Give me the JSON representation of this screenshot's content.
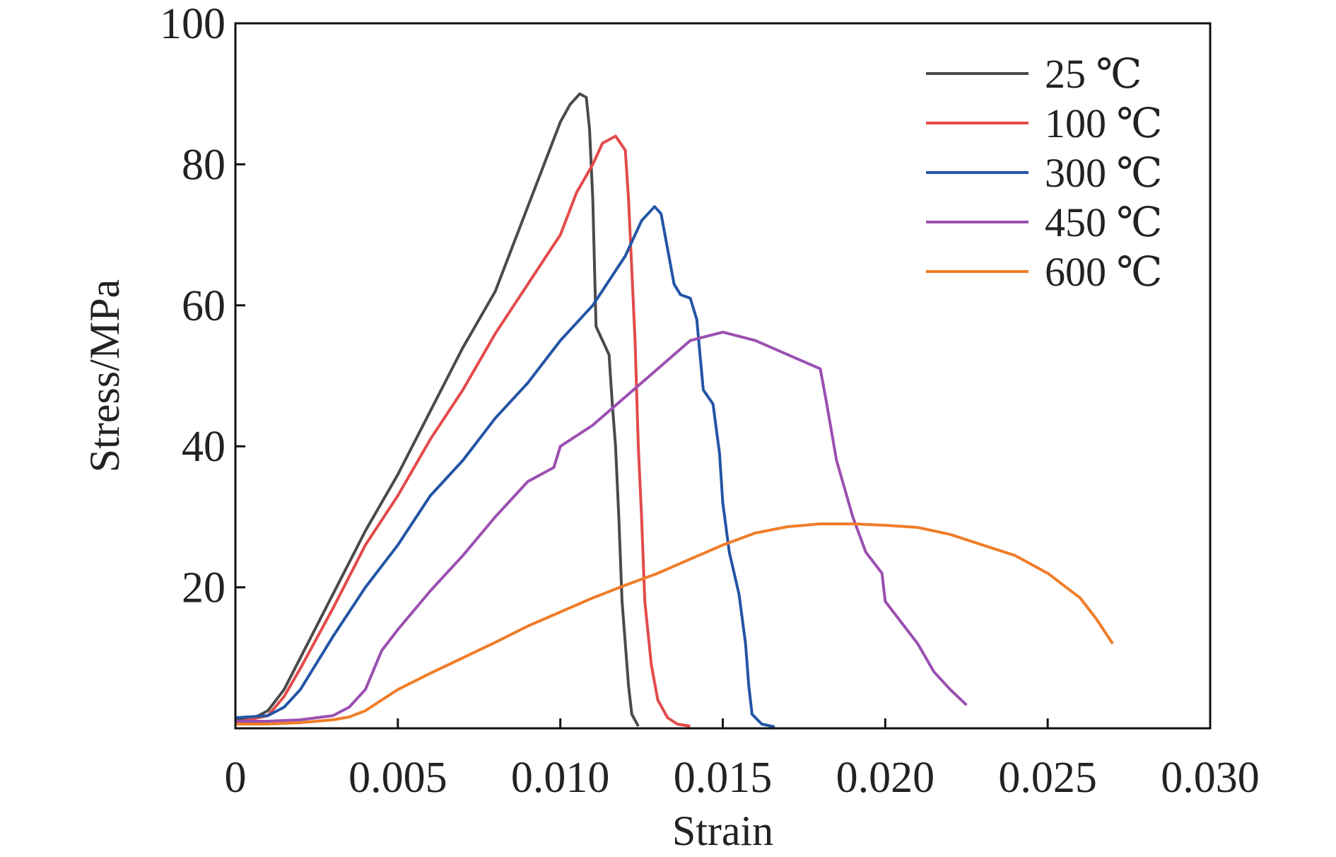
{
  "chart_data": {
    "type": "line",
    "xlabel": "Strain",
    "ylabel": "Stress/MPa",
    "xlim": [
      0,
      0.03
    ],
    "ylim": [
      0,
      100
    ],
    "x_ticks": [
      0,
      0.005,
      0.01,
      0.015,
      0.02,
      0.025,
      0.03
    ],
    "x_tick_labels": [
      "0",
      "0.005",
      "0.010",
      "0.015",
      "0.020",
      "0.025",
      "0.030"
    ],
    "y_ticks": [
      20,
      40,
      60,
      80,
      100
    ],
    "y_tick_labels": [
      "20",
      "40",
      "60",
      "80",
      "100"
    ],
    "grid": false,
    "legend_position": "top-right",
    "series": [
      {
        "name": "25 ℃",
        "color": "#4a4a4a",
        "points": [
          [
            0,
            1.2
          ],
          [
            0.0005,
            1.3
          ],
          [
            0.001,
            2.5
          ],
          [
            0.0015,
            5.5
          ],
          [
            0.002,
            10
          ],
          [
            0.003,
            19
          ],
          [
            0.004,
            28
          ],
          [
            0.005,
            36
          ],
          [
            0.006,
            45
          ],
          [
            0.007,
            54
          ],
          [
            0.0075,
            58
          ],
          [
            0.008,
            62
          ],
          [
            0.0085,
            68
          ],
          [
            0.009,
            74
          ],
          [
            0.0095,
            80
          ],
          [
            0.01,
            86
          ],
          [
            0.0103,
            88.5
          ],
          [
            0.0106,
            90
          ],
          [
            0.0108,
            89.5
          ],
          [
            0.0109,
            85
          ],
          [
            0.011,
            75
          ],
          [
            0.0111,
            57
          ],
          [
            0.0113,
            55
          ],
          [
            0.0115,
            53
          ],
          [
            0.0116,
            46
          ],
          [
            0.0117,
            40
          ],
          [
            0.0118,
            30
          ],
          [
            0.0119,
            18
          ],
          [
            0.0121,
            6
          ],
          [
            0.0122,
            2
          ],
          [
            0.0124,
            0.3
          ]
        ]
      },
      {
        "name": "100 ℃",
        "color": "#e34a4a",
        "points": [
          [
            0,
            0.8
          ],
          [
            0.001,
            1.8
          ],
          [
            0.0015,
            4.5
          ],
          [
            0.002,
            8.5
          ],
          [
            0.003,
            17
          ],
          [
            0.004,
            26
          ],
          [
            0.005,
            33
          ],
          [
            0.006,
            41
          ],
          [
            0.007,
            48
          ],
          [
            0.008,
            56
          ],
          [
            0.009,
            63
          ],
          [
            0.01,
            70
          ],
          [
            0.0105,
            76
          ],
          [
            0.011,
            80
          ],
          [
            0.0113,
            83
          ],
          [
            0.0117,
            84
          ],
          [
            0.012,
            82
          ],
          [
            0.0121,
            75
          ],
          [
            0.0122,
            65
          ],
          [
            0.0123,
            55
          ],
          [
            0.0124,
            40
          ],
          [
            0.0125,
            30
          ],
          [
            0.0126,
            18
          ],
          [
            0.0128,
            9
          ],
          [
            0.013,
            4
          ],
          [
            0.0133,
            1.5
          ],
          [
            0.0136,
            0.6
          ],
          [
            0.014,
            0.3
          ]
        ]
      },
      {
        "name": "300 ℃",
        "color": "#2355a5",
        "points": [
          [
            0,
            1.5
          ],
          [
            0.001,
            1.8
          ],
          [
            0.0015,
            3
          ],
          [
            0.002,
            5.5
          ],
          [
            0.003,
            13
          ],
          [
            0.004,
            20
          ],
          [
            0.005,
            26
          ],
          [
            0.006,
            33
          ],
          [
            0.007,
            38
          ],
          [
            0.008,
            44
          ],
          [
            0.009,
            49
          ],
          [
            0.01,
            55
          ],
          [
            0.011,
            60
          ],
          [
            0.012,
            67
          ],
          [
            0.0125,
            72
          ],
          [
            0.0129,
            74
          ],
          [
            0.0131,
            73
          ],
          [
            0.0133,
            68
          ],
          [
            0.0135,
            63
          ],
          [
            0.0137,
            61.5
          ],
          [
            0.014,
            61
          ],
          [
            0.0142,
            58
          ],
          [
            0.0144,
            48
          ],
          [
            0.0147,
            46
          ],
          [
            0.0149,
            39
          ],
          [
            0.015,
            32
          ],
          [
            0.0152,
            25
          ],
          [
            0.0155,
            19
          ],
          [
            0.0157,
            12
          ],
          [
            0.0158,
            6
          ],
          [
            0.0159,
            2
          ],
          [
            0.0162,
            0.6
          ],
          [
            0.0166,
            0.2
          ]
        ]
      },
      {
        "name": "450 ℃",
        "color": "#9b4fb0",
        "points": [
          [
            0,
            1
          ],
          [
            0.001,
            1
          ],
          [
            0.002,
            1.2
          ],
          [
            0.003,
            1.8
          ],
          [
            0.0035,
            3
          ],
          [
            0.004,
            5.5
          ],
          [
            0.0045,
            11
          ],
          [
            0.005,
            14
          ],
          [
            0.006,
            19.5
          ],
          [
            0.007,
            24.5
          ],
          [
            0.008,
            30
          ],
          [
            0.009,
            35
          ],
          [
            0.0098,
            37
          ],
          [
            0.01,
            40
          ],
          [
            0.011,
            43
          ],
          [
            0.012,
            47
          ],
          [
            0.013,
            51
          ],
          [
            0.014,
            55
          ],
          [
            0.015,
            56.2
          ],
          [
            0.016,
            55
          ],
          [
            0.017,
            53
          ],
          [
            0.0175,
            52
          ],
          [
            0.018,
            51
          ],
          [
            0.0182,
            46
          ],
          [
            0.0185,
            38
          ],
          [
            0.019,
            30
          ],
          [
            0.0194,
            25
          ],
          [
            0.0199,
            22
          ],
          [
            0.02,
            18
          ],
          [
            0.0205,
            15
          ],
          [
            0.021,
            12
          ],
          [
            0.0215,
            8
          ],
          [
            0.022,
            5.5
          ],
          [
            0.0225,
            3.3
          ]
        ]
      },
      {
        "name": "600 ℃",
        "color": "#f07c28",
        "points": [
          [
            0,
            0.6
          ],
          [
            0.001,
            0.6
          ],
          [
            0.002,
            0.8
          ],
          [
            0.003,
            1.2
          ],
          [
            0.0035,
            1.6
          ],
          [
            0.004,
            2.5
          ],
          [
            0.0045,
            4
          ],
          [
            0.005,
            5.5
          ],
          [
            0.006,
            7.8
          ],
          [
            0.007,
            10
          ],
          [
            0.008,
            12.2
          ],
          [
            0.009,
            14.5
          ],
          [
            0.01,
            16.5
          ],
          [
            0.011,
            18.5
          ],
          [
            0.012,
            20.3
          ],
          [
            0.013,
            22
          ],
          [
            0.014,
            24
          ],
          [
            0.015,
            26
          ],
          [
            0.016,
            27.7
          ],
          [
            0.017,
            28.6
          ],
          [
            0.018,
            29
          ],
          [
            0.019,
            29
          ],
          [
            0.02,
            28.8
          ],
          [
            0.021,
            28.5
          ],
          [
            0.022,
            27.5
          ],
          [
            0.023,
            26
          ],
          [
            0.024,
            24.5
          ],
          [
            0.025,
            22
          ],
          [
            0.026,
            18.5
          ],
          [
            0.0265,
            15.5
          ],
          [
            0.027,
            12
          ]
        ]
      }
    ]
  }
}
